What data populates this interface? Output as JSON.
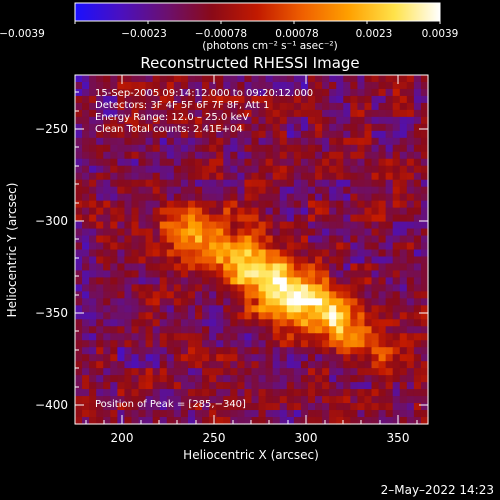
{
  "colorbar": {
    "tick_labels": [
      "−0.0039",
      "−0.0023",
      "−0.00078",
      "0.00078",
      "0.0023",
      "0.0039"
    ],
    "range": [
      -0.0039,
      0.0039
    ],
    "units_label": "(photons cm⁻² s⁻¹ asec⁻²)",
    "colormap_stops": [
      "#1a10ff",
      "#4a10c0",
      "#6b1070",
      "#8a0a18",
      "#c21a00",
      "#f06000",
      "#ffa000",
      "#ffe24a",
      "#ffffff"
    ]
  },
  "plot": {
    "title": "Reconstructed RHESSI Image",
    "annotations": [
      "15-Sep-2005 09:14:12.000 to 09:20:12.000",
      "Detectors: 3F 4F 5F 6F 7F 8F, Att 1",
      "Energy Range: 12.0 – 25.0 keV",
      "Clean    Total counts: 2.41E+04"
    ],
    "peak_label": "Position of Peak = [285,−340]",
    "x_axis": {
      "label": "Heliocentric X (arcsec)",
      "tick_labels": [
        "200",
        "250",
        "300",
        "350"
      ],
      "range": [
        175,
        368
      ]
    },
    "y_axis": {
      "label": "Heliocentric Y (arcsec)",
      "tick_labels": [
        "−250",
        "−300",
        "−350",
        "−400"
      ],
      "range": [
        -410,
        -220
      ]
    }
  },
  "footer": {
    "timestamp": "2–May–2022 14:23"
  },
  "colors": {
    "background": "#000000",
    "text": "#ffffff"
  }
}
